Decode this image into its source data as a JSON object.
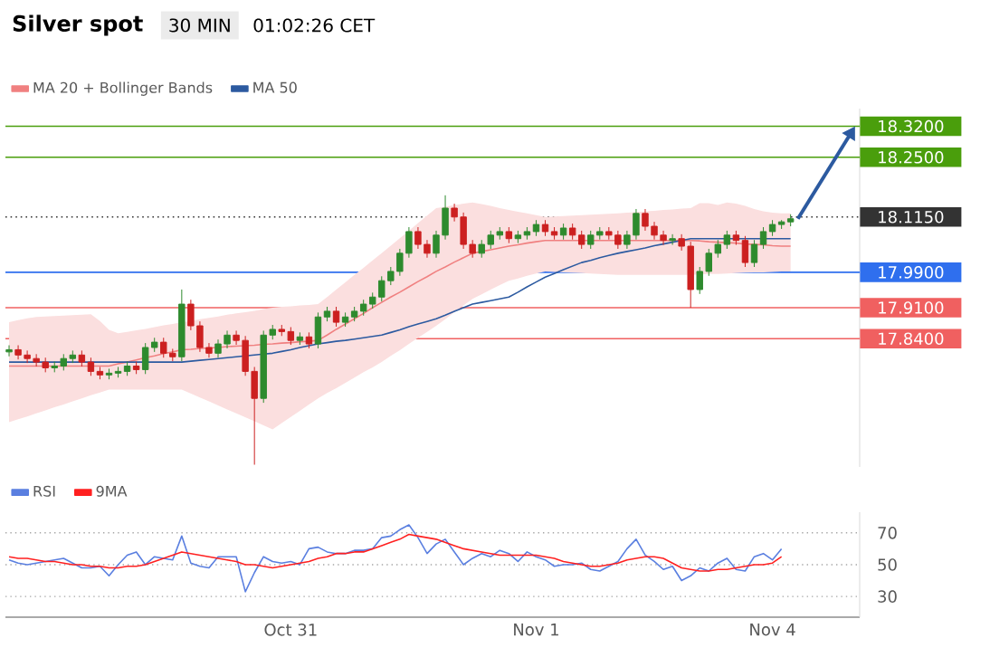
{
  "chart_data": [
    {
      "type": "candlestick",
      "title": "Silver spot",
      "subtitle": "30 MIN",
      "annotations": [
        "01:02:26 CET"
      ],
      "ylim": [
        17.55,
        18.36
      ],
      "yticks": [
        {
          "value": 18.32,
          "label": "18.3200"
        },
        {
          "value": 18.25,
          "label": "18.2500"
        },
        {
          "value": 18.115,
          "label": "18.1150"
        },
        {
          "value": 17.99,
          "label": "17.9900"
        },
        {
          "value": 17.91,
          "label": "17.9100"
        },
        {
          "value": 17.84,
          "label": "17.8400"
        }
      ],
      "tick_labels": "y",
      "legend": "top left",
      "categories": [
        null,
        null,
        null,
        null,
        null,
        null,
        null,
        null,
        null,
        null,
        null,
        null,
        null,
        null,
        null,
        null,
        null,
        null,
        null,
        null,
        null,
        null,
        null,
        null,
        null,
        null,
        null,
        null,
        null,
        null,
        null,
        null,
        null,
        null,
        null,
        null,
        null,
        null,
        null,
        null,
        null,
        null,
        null,
        null,
        null,
        null,
        null,
        null,
        null,
        null,
        null,
        null,
        null,
        null,
        null,
        null,
        null,
        null,
        null,
        null,
        null,
        null,
        null,
        null,
        null,
        null,
        null,
        null,
        null,
        null,
        null,
        null,
        null,
        null,
        null,
        null,
        null,
        null,
        null,
        null,
        null,
        null,
        null,
        null,
        null,
        null,
        null
      ],
      "ohlc": [
        [
          17.81,
          17.825,
          17.8,
          17.815
        ],
        [
          17.815,
          17.825,
          17.793,
          17.803
        ],
        [
          17.803,
          17.813,
          17.785,
          17.795
        ],
        [
          17.795,
          17.805,
          17.777,
          17.787
        ],
        [
          17.787,
          17.797,
          17.764,
          17.774
        ],
        [
          17.774,
          17.788,
          17.764,
          17.778
        ],
        [
          17.778,
          17.805,
          17.768,
          17.795
        ],
        [
          17.795,
          17.813,
          17.785,
          17.803
        ],
        [
          17.803,
          17.813,
          17.777,
          17.787
        ],
        [
          17.787,
          17.797,
          17.756,
          17.766
        ],
        [
          17.766,
          17.776,
          17.748,
          17.758
        ],
        [
          17.758,
          17.772,
          17.748,
          17.762
        ],
        [
          17.762,
          17.776,
          17.752,
          17.766
        ],
        [
          17.766,
          17.788,
          17.756,
          17.778
        ],
        [
          17.778,
          17.788,
          17.76,
          17.77
        ],
        [
          17.77,
          17.83,
          17.76,
          17.82
        ],
        [
          17.82,
          17.842,
          17.81,
          17.832
        ],
        [
          17.832,
          17.842,
          17.797,
          17.807
        ],
        [
          17.807,
          17.817,
          17.789,
          17.799
        ],
        [
          17.799,
          17.951,
          17.789,
          17.918
        ],
        [
          17.918,
          17.928,
          17.859,
          17.869
        ],
        [
          17.869,
          17.879,
          17.81,
          17.82
        ],
        [
          17.82,
          17.83,
          17.797,
          17.807
        ],
        [
          17.807,
          17.838,
          17.797,
          17.828
        ],
        [
          17.828,
          17.858,
          17.818,
          17.848
        ],
        [
          17.848,
          17.858,
          17.826,
          17.836
        ],
        [
          17.836,
          17.846,
          17.756,
          17.766
        ],
        [
          17.766,
          17.776,
          17.555,
          17.705
        ],
        [
          17.705,
          17.858,
          17.695,
          17.848
        ],
        [
          17.848,
          17.871,
          17.838,
          17.861
        ],
        [
          17.861,
          17.871,
          17.846,
          17.856
        ],
        [
          17.856,
          17.866,
          17.826,
          17.836
        ],
        [
          17.836,
          17.854,
          17.826,
          17.844
        ],
        [
          17.844,
          17.854,
          17.818,
          17.828
        ],
        [
          17.828,
          17.899,
          17.818,
          17.889
        ],
        [
          17.889,
          17.912,
          17.879,
          17.902
        ],
        [
          17.902,
          17.912,
          17.867,
          17.877
        ],
        [
          17.877,
          17.899,
          17.867,
          17.889
        ],
        [
          17.889,
          17.912,
          17.879,
          17.902
        ],
        [
          17.902,
          17.928,
          17.892,
          17.918
        ],
        [
          17.918,
          17.944,
          17.908,
          17.934
        ],
        [
          17.934,
          17.981,
          17.924,
          17.971
        ],
        [
          17.971,
          18.002,
          17.961,
          17.992
        ],
        [
          17.992,
          18.043,
          17.982,
          18.033
        ],
        [
          18.033,
          18.092,
          18.023,
          18.082
        ],
        [
          18.082,
          18.092,
          18.043,
          18.053
        ],
        [
          18.053,
          18.063,
          18.023,
          18.033
        ],
        [
          18.033,
          18.084,
          18.023,
          18.074
        ],
        [
          18.074,
          18.164,
          18.064,
          18.135
        ],
        [
          18.135,
          18.145,
          18.105,
          18.115
        ],
        [
          18.115,
          18.125,
          18.043,
          18.053
        ],
        [
          18.053,
          18.063,
          18.023,
          18.033
        ],
        [
          18.033,
          18.063,
          18.023,
          18.053
        ],
        [
          18.053,
          18.084,
          18.043,
          18.074
        ],
        [
          18.074,
          18.092,
          18.064,
          18.082
        ],
        [
          18.082,
          18.092,
          18.056,
          18.066
        ],
        [
          18.066,
          18.084,
          18.056,
          18.074
        ],
        [
          18.074,
          18.092,
          18.064,
          18.082
        ],
        [
          18.082,
          18.108,
          18.072,
          18.098
        ],
        [
          18.098,
          18.108,
          18.072,
          18.082
        ],
        [
          18.082,
          18.092,
          18.064,
          18.074
        ],
        [
          18.074,
          18.1,
          18.064,
          18.09
        ],
        [
          18.09,
          18.1,
          18.064,
          18.074
        ],
        [
          18.074,
          18.084,
          18.043,
          18.053
        ],
        [
          18.053,
          18.084,
          18.043,
          18.074
        ],
        [
          18.074,
          18.092,
          18.064,
          18.082
        ],
        [
          18.082,
          18.092,
          18.064,
          18.074
        ],
        [
          18.074,
          18.084,
          18.043,
          18.053
        ],
        [
          18.053,
          18.084,
          18.043,
          18.074
        ],
        [
          18.074,
          18.133,
          18.064,
          18.123
        ],
        [
          18.123,
          18.133,
          18.084,
          18.094
        ],
        [
          18.094,
          18.104,
          18.064,
          18.074
        ],
        [
          18.074,
          18.084,
          18.052,
          18.062
        ],
        [
          18.062,
          18.076,
          18.052,
          18.066
        ],
        [
          18.066,
          18.076,
          18.039,
          18.049
        ],
        [
          18.049,
          18.059,
          17.91,
          17.951
        ],
        [
          17.951,
          18.002,
          17.941,
          17.992
        ],
        [
          17.992,
          18.043,
          17.982,
          18.033
        ],
        [
          18.033,
          18.063,
          18.023,
          18.053
        ],
        [
          18.053,
          18.084,
          18.043,
          18.074
        ],
        [
          18.074,
          18.084,
          18.052,
          18.062
        ],
        [
          18.062,
          18.072,
          18.002,
          18.012
        ],
        [
          18.012,
          18.063,
          18.002,
          18.053
        ],
        [
          18.053,
          18.092,
          18.043,
          18.082
        ],
        [
          18.082,
          18.108,
          18.072,
          18.098
        ],
        [
          18.098,
          18.108,
          18.088,
          18.104
        ],
        [
          18.104,
          18.121,
          18.094,
          18.111
        ]
      ],
      "series": [
        {
          "name": "MA 20 + Bollinger Bands",
          "type": "line",
          "color": "#f08080",
          "values": [
            17.778,
            17.778,
            17.778,
            17.778,
            17.778,
            17.778,
            17.778,
            17.778,
            17.778,
            17.778,
            17.778,
            17.778,
            17.783,
            17.787,
            17.792,
            17.797,
            17.801,
            17.806,
            17.81,
            17.815,
            17.816,
            17.818,
            17.819,
            17.82,
            17.822,
            17.823,
            17.824,
            17.825,
            17.827,
            17.828,
            17.83,
            17.831,
            17.833,
            17.834,
            17.836,
            17.848,
            17.861,
            17.873,
            17.885,
            17.897,
            17.91,
            17.922,
            17.934,
            17.945,
            17.957,
            17.969,
            17.98,
            17.992,
            18.002,
            18.013,
            18.023,
            18.033,
            18.037,
            18.041,
            18.045,
            18.049,
            18.052,
            18.056,
            18.059,
            18.062,
            18.062,
            18.062,
            18.062,
            18.062,
            18.062,
            18.062,
            18.062,
            18.062,
            18.062,
            18.062,
            18.062,
            18.062,
            18.062,
            18.062,
            18.062,
            18.062,
            18.061,
            18.059,
            18.058,
            18.057,
            18.056,
            18.054,
            18.053,
            18.052,
            18.05,
            18.049,
            18.049
          ],
          "upper": [
            17.877,
            17.882,
            17.886,
            17.889,
            17.89,
            17.891,
            17.892,
            17.893,
            17.894,
            17.895,
            17.88,
            17.86,
            17.852,
            17.855,
            17.859,
            17.862,
            17.866,
            17.87,
            17.873,
            17.877,
            17.88,
            17.884,
            17.887,
            17.89,
            17.894,
            17.897,
            17.9,
            17.903,
            17.907,
            17.91,
            17.912,
            17.913,
            17.915,
            17.916,
            17.918,
            17.934,
            17.951,
            17.967,
            17.984,
            18.0,
            18.017,
            18.033,
            18.05,
            18.067,
            18.084,
            18.101,
            18.118,
            18.135,
            18.138,
            18.142,
            18.145,
            18.148,
            18.144,
            18.14,
            18.135,
            18.131,
            18.127,
            18.123,
            18.119,
            18.115,
            18.116,
            18.117,
            18.118,
            18.119,
            18.12,
            18.121,
            18.122,
            18.123,
            18.125,
            18.126,
            18.128,
            18.129,
            18.131,
            18.132,
            18.134,
            18.135,
            18.146,
            18.146,
            18.142,
            18.148,
            18.145,
            18.14,
            18.133,
            18.128,
            18.125,
            18.123,
            18.123
          ],
          "lower": [
            17.651,
            17.658,
            17.664,
            17.671,
            17.678,
            17.685,
            17.691,
            17.698,
            17.705,
            17.712,
            17.718,
            17.725,
            17.725,
            17.725,
            17.725,
            17.725,
            17.725,
            17.725,
            17.725,
            17.725,
            17.716,
            17.707,
            17.698,
            17.689,
            17.68,
            17.671,
            17.662,
            17.653,
            17.644,
            17.635,
            17.649,
            17.663,
            17.677,
            17.691,
            17.705,
            17.717,
            17.728,
            17.74,
            17.752,
            17.764,
            17.775,
            17.787,
            17.801,
            17.814,
            17.828,
            17.842,
            17.855,
            17.869,
            17.884,
            17.9,
            17.915,
            17.93,
            17.94,
            17.951,
            17.961,
            17.971,
            17.976,
            17.982,
            17.987,
            17.992,
            17.991,
            17.99,
            17.989,
            17.988,
            17.987,
            17.986,
            17.985,
            17.984,
            17.984,
            17.984,
            17.984,
            17.984,
            17.984,
            17.984,
            17.984,
            17.984,
            17.985,
            17.986,
            17.986,
            17.987,
            17.988,
            17.989,
            17.99,
            17.99,
            17.991,
            17.992,
            17.992
          ]
        },
        {
          "name": "MA 50",
          "type": "line",
          "color": "#2c5aa0",
          "values": [
            17.787,
            17.787,
            17.787,
            17.787,
            17.787,
            17.787,
            17.787,
            17.787,
            17.787,
            17.787,
            17.787,
            17.787,
            17.787,
            17.787,
            17.787,
            17.787,
            17.787,
            17.787,
            17.787,
            17.787,
            17.789,
            17.791,
            17.793,
            17.795,
            17.797,
            17.799,
            17.801,
            17.803,
            17.805,
            17.807,
            17.811,
            17.815,
            17.82,
            17.824,
            17.828,
            17.831,
            17.834,
            17.836,
            17.839,
            17.842,
            17.845,
            17.848,
            17.854,
            17.86,
            17.867,
            17.873,
            17.879,
            17.885,
            17.893,
            17.902,
            17.91,
            17.918,
            17.922,
            17.926,
            17.93,
            17.934,
            17.945,
            17.957,
            17.968,
            17.979,
            17.987,
            17.996,
            18.004,
            18.012,
            18.017,
            18.023,
            18.028,
            18.033,
            18.037,
            18.041,
            18.045,
            18.05,
            18.054,
            18.058,
            18.062,
            18.066,
            18.066,
            18.066,
            18.066,
            18.066,
            18.066,
            18.066,
            18.066,
            18.066,
            18.066,
            18.066,
            18.066
          ]
        }
      ],
      "ref_lines": [
        {
          "axis": "y",
          "value": 18.32,
          "color": "#4a9e0c",
          "line_style": "solid"
        },
        {
          "axis": "y",
          "value": 18.25,
          "color": "#4a9e0c",
          "line_style": "solid"
        },
        {
          "axis": "y",
          "value": 18.115,
          "color": "#333333",
          "line_style": "dotted"
        },
        {
          "axis": "y",
          "value": 17.99,
          "color": "#2f6fee",
          "line_style": "solid"
        },
        {
          "axis": "y",
          "value": 17.91,
          "color": "#f06060",
          "line_style": "solid"
        },
        {
          "axis": "y",
          "value": 17.84,
          "color": "#f06060",
          "line_style": "solid"
        }
      ]
    },
    {
      "type": "line",
      "ylim": [
        17,
        83
      ],
      "yticks": [
        30,
        50,
        70
      ],
      "grid": "y",
      "legend": "top left",
      "categories": [
        null,
        null,
        null,
        null,
        null,
        null,
        null,
        null,
        null,
        null,
        null,
        null,
        null,
        null,
        null,
        null,
        null,
        null,
        null,
        null,
        null,
        null,
        null,
        null,
        null,
        null,
        null,
        null,
        null,
        null,
        null,
        "Oct 31",
        null,
        null,
        null,
        null,
        null,
        null,
        null,
        null,
        null,
        null,
        null,
        null,
        null,
        null,
        null,
        null,
        null,
        null,
        null,
        null,
        null,
        null,
        null,
        null,
        null,
        null,
        "Nov 1",
        null,
        null,
        null,
        null,
        null,
        null,
        null,
        null,
        null,
        null,
        null,
        null,
        null,
        null,
        null,
        null,
        null,
        null,
        null,
        null,
        null,
        null,
        null,
        null,
        null,
        "Nov 4",
        null,
        null
      ],
      "series": [
        {
          "name": "RSI",
          "color": "#5a7fe0",
          "values": [
            53,
            51,
            50,
            51,
            52,
            53,
            54,
            51,
            48,
            48,
            49,
            43,
            50,
            56,
            58,
            50,
            55,
            54,
            53,
            68,
            51,
            49,
            48,
            55,
            55,
            55,
            33,
            45,
            55,
            52,
            51,
            52,
            50,
            60,
            61,
            58,
            57,
            57,
            59,
            59,
            60,
            67,
            68,
            72,
            75,
            67,
            57,
            63,
            66,
            58,
            50,
            54,
            57,
            55,
            59,
            57,
            52,
            58,
            55,
            53,
            49,
            50,
            50,
            51,
            47,
            46,
            49,
            52,
            60,
            66,
            56,
            52,
            47,
            49,
            40,
            43,
            48,
            46,
            51,
            54,
            47,
            46,
            55,
            57,
            53,
            60,
            null
          ]
        },
        {
          "name": "9MA",
          "color": "#ff2020",
          "values": [
            55,
            54,
            54,
            53,
            52,
            52,
            51,
            50,
            50,
            49,
            49,
            48,
            48,
            49,
            49,
            50,
            52,
            54,
            56,
            58,
            57,
            56,
            55,
            54,
            53,
            52,
            50,
            50,
            49,
            48,
            49,
            50,
            51,
            52,
            54,
            55,
            57,
            57,
            58,
            58,
            60,
            62,
            64,
            66,
            69,
            68,
            67,
            66,
            64,
            62,
            60,
            59,
            58,
            57,
            56,
            56,
            56,
            56,
            56,
            55,
            54,
            52,
            51,
            50,
            49,
            49,
            50,
            51,
            53,
            54,
            55,
            55,
            54,
            51,
            48,
            47,
            46,
            46,
            47,
            47,
            48,
            49,
            50,
            50,
            51,
            55,
            null
          ]
        }
      ]
    }
  ]
}
